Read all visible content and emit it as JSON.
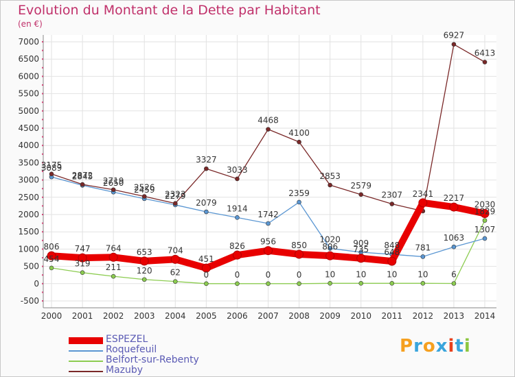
{
  "title": "Evolution du Montant de la Dette par Habitant",
  "subtitle": "(en €)",
  "logo": {
    "text": "Proxiti",
    "letters": [
      "P",
      "r",
      "o",
      "x",
      "i",
      "t",
      "i"
    ],
    "colors": [
      "#f5a020",
      "#3aa5dc",
      "#f5a020",
      "#3aa5dc",
      "#e8401c",
      "#3aa5dc",
      "#8cc63f"
    ]
  },
  "chart_data": {
    "type": "line",
    "x": [
      "2000",
      "2001",
      "2002",
      "2003",
      "2004",
      "2005",
      "2006",
      "2007",
      "2008",
      "2009",
      "2010",
      "2011",
      "2012",
      "2013",
      "2014"
    ],
    "ylim": [
      -500,
      7000
    ],
    "yticks": [
      "-500",
      "0",
      "500",
      "1000",
      "1500",
      "2000",
      "2500",
      "3000",
      "3500",
      "4000",
      "4500",
      "5000",
      "5500",
      "6000",
      "6500",
      "7000"
    ],
    "grid": true,
    "legend": "bottom-left",
    "series": [
      {
        "name": "ESPEZEL",
        "color": "#e80000",
        "values": [
          806,
          747,
          764,
          653,
          704,
          451,
          826,
          956,
          850,
          806,
          735,
          648,
          2341,
          2217,
          2030
        ],
        "labels": [
          "806",
          "747",
          "764",
          "653",
          "704",
          "451",
          "826",
          "956",
          "850",
          "806",
          "735",
          "648",
          "2341",
          "2217",
          "2030"
        ]
      },
      {
        "name": "Roquefeuil",
        "color": "#5a96d2",
        "values": [
          3089,
          2845,
          2650,
          2459,
          2279,
          2079,
          1914,
          1742,
          2359,
          1020,
          909,
          848,
          781,
          1063,
          1307
        ],
        "labels": [
          "3089",
          "2845",
          "2650",
          "2459",
          "2279",
          "2079",
          "1914",
          "1742",
          "2359",
          "1020",
          "909",
          "848",
          "781",
          "1063",
          "1307"
        ]
      },
      {
        "name": "Belfort-sur-Rebenty",
        "color": "#8ccc50",
        "values": [
          454,
          319,
          211,
          120,
          62,
          0,
          0,
          0,
          0,
          10,
          10,
          10,
          10,
          6,
          1829
        ],
        "labels": [
          "454",
          "319",
          "211",
          "120",
          "62",
          "0",
          "0",
          "0",
          "0",
          "10",
          "10",
          "10",
          "10",
          "6",
          "1829"
        ]
      },
      {
        "name": "Mazuby",
        "color": "#7a2828",
        "values": [
          3175,
          2872,
          2719,
          2526,
          2323,
          3327,
          3033,
          4468,
          4100,
          2853,
          2579,
          2307,
          2100,
          6927,
          6413
        ],
        "labels": [
          "3175",
          "2872",
          "2719",
          "2526",
          "2323",
          "3327",
          "3033",
          "4468",
          "4100",
          "2853",
          "2579",
          "2307",
          "",
          "6927",
          "6413"
        ]
      }
    ]
  }
}
